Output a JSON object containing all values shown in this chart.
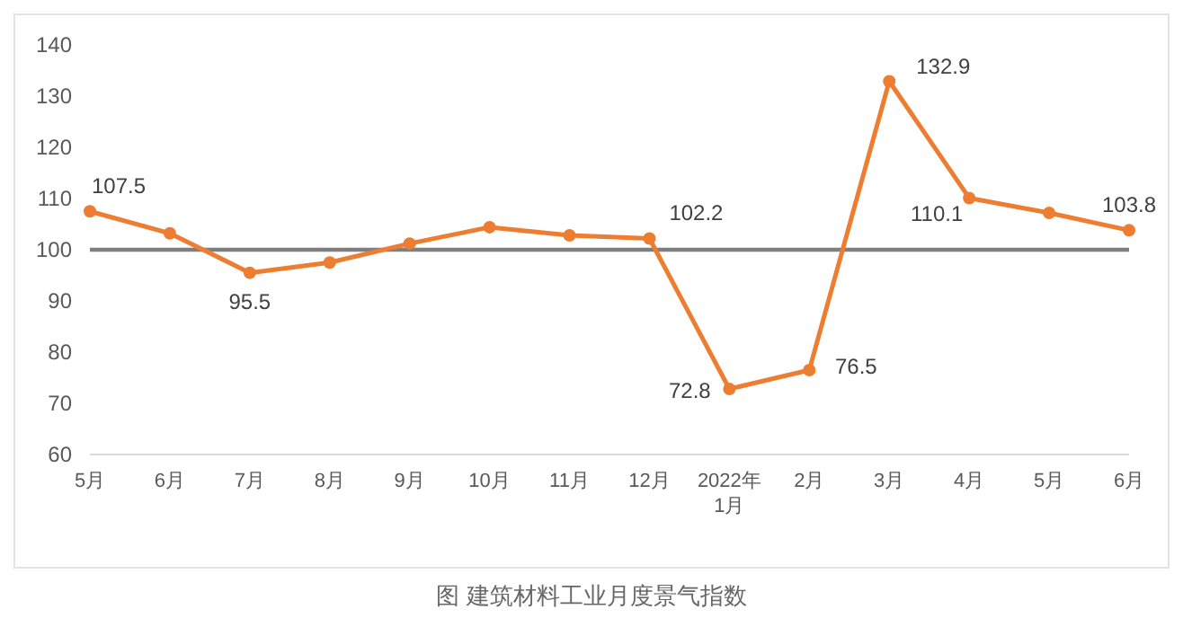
{
  "chart_data": {
    "type": "line",
    "title": "图 建筑材料工业月度景气指数",
    "categories": [
      "5月",
      "6月",
      "7月",
      "8月",
      "9月",
      "10月",
      "11月",
      "12月",
      "2022年\n1月",
      "2月",
      "3月",
      "4月",
      "5月",
      "6月"
    ],
    "series": [
      {
        "color": "#ed7d31",
        "values": [
          107.5,
          103.2,
          95.5,
          97.5,
          101.2,
          104.4,
          102.8,
          102.2,
          72.8,
          76.5,
          132.9,
          110.1,
          107.2,
          103.8
        ],
        "value_labels": [
          "107.5",
          null,
          "95.5",
          null,
          null,
          null,
          null,
          "102.2",
          "72.8",
          "76.5",
          "132.9",
          "110.1",
          null,
          "103.8"
        ]
      }
    ],
    "ylim": [
      60,
      140
    ],
    "yticks": [
      60,
      70,
      80,
      90,
      100,
      110,
      120,
      130,
      140
    ],
    "ref_lines": [
      {
        "axis": "y",
        "value": 100,
        "color": "#7f7f7f"
      }
    ],
    "marker": "circle",
    "line_style": "solid",
    "grid": false
  }
}
